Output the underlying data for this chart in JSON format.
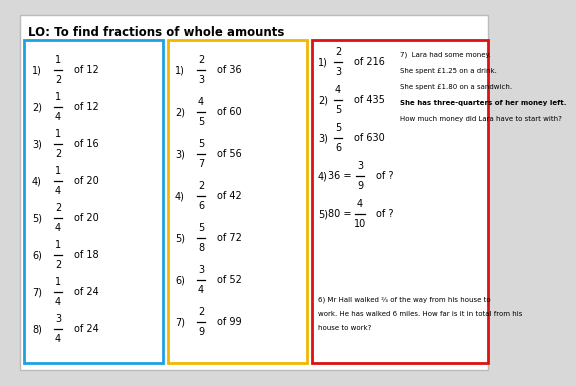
{
  "title": "LO: To find fractions of whole amounts",
  "bg_color": "#d8d8d8",
  "blue_items": [
    {
      "n": "1",
      "num": "1",
      "den": "2",
      "of": "of 12"
    },
    {
      "n": "2",
      "num": "1",
      "den": "4",
      "of": "of 12"
    },
    {
      "n": "3",
      "num": "1",
      "den": "2",
      "of": "of 16"
    },
    {
      "n": "4",
      "num": "1",
      "den": "4",
      "of": "of 20"
    },
    {
      "n": "5",
      "num": "2",
      "den": "4",
      "of": "of 20"
    },
    {
      "n": "6",
      "num": "1",
      "den": "2",
      "of": "of 18"
    },
    {
      "n": "7",
      "num": "1",
      "den": "4",
      "of": "of 24"
    },
    {
      "n": "8",
      "num": "3",
      "den": "4",
      "of": "of 24"
    }
  ],
  "yellow_items": [
    {
      "n": "1",
      "num": "2",
      "den": "3",
      "of": "of 36"
    },
    {
      "n": "2",
      "num": "4",
      "den": "5",
      "of": "of 60"
    },
    {
      "n": "3",
      "num": "5",
      "den": "7",
      "of": "of 56"
    },
    {
      "n": "4",
      "num": "2",
      "den": "6",
      "of": "of 42"
    },
    {
      "n": "5",
      "num": "5",
      "den": "8",
      "of": "of 72"
    },
    {
      "n": "6",
      "num": "3",
      "den": "4",
      "of": "of 52"
    },
    {
      "n": "7",
      "num": "2",
      "den": "9",
      "of": "of 99"
    }
  ],
  "red_fractions": [
    {
      "n": "1",
      "num": "2",
      "den": "3",
      "of": "of 216",
      "eq": null
    },
    {
      "n": "2",
      "num": "4",
      "den": "5",
      "of": "of 435",
      "eq": null
    },
    {
      "n": "3",
      "num": "5",
      "den": "6",
      "of": "of 630",
      "eq": null
    },
    {
      "n": "4",
      "num": "3",
      "den": "9",
      "of": "of ?",
      "eq": "36 ="
    },
    {
      "n": "5",
      "num": "4",
      "den": "10",
      "of": "of ?",
      "eq": "80 ="
    }
  ],
  "lara_lines": [
    "7)  Lara had some money.",
    "She spent £1.25 on a drink.",
    "She spent £1.80 on a sandwich.",
    "She has three-quarters of her money left.",
    "How much money did Lara have to start with?"
  ],
  "lara_bold_idx": 3,
  "hall_lines": [
    "6) Mr Hall walked ⅔ of the way from his house to",
    "work. He has walked 6 miles. How far is it in total from his",
    "house to work?"
  ]
}
